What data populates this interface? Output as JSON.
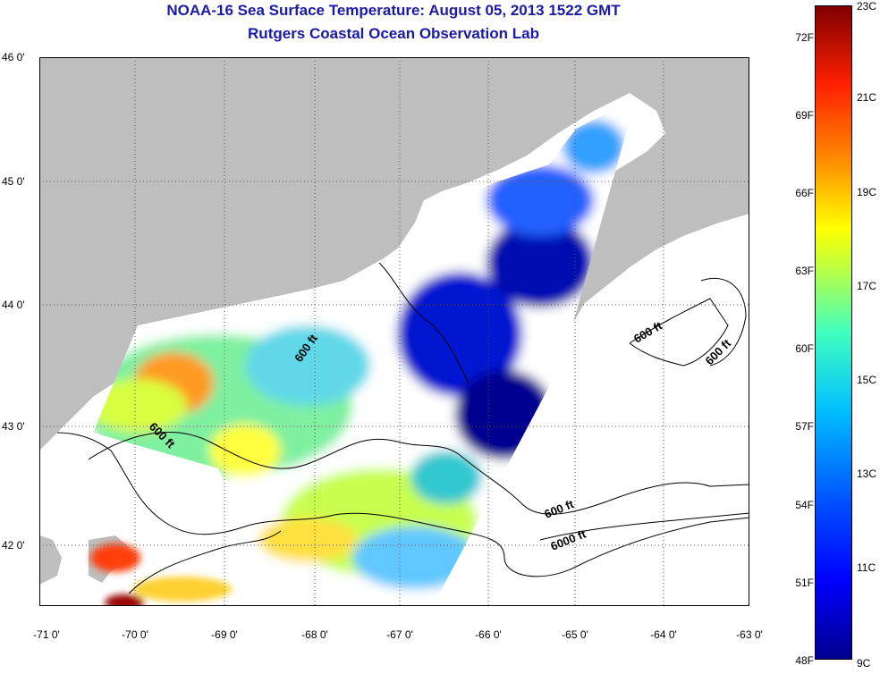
{
  "title_line1": "NOAA-16 Sea Surface Temperature:  August 05, 2013 1522 GMT",
  "title_line2": "Rutgers Coastal Ocean Observation Lab",
  "lat_labels": [
    "46 0'",
    "45 0'",
    "44 0'",
    "43 0'",
    "42 0'"
  ],
  "lon_labels": [
    "-71 0'",
    "-70 0'",
    "-69 0'",
    "-68 0'",
    "-67 0'",
    "-66 0'",
    "-65 0'",
    "-64 0'",
    "-63 0'"
  ],
  "contour_labels": [
    "600 ft",
    "600 ft",
    "600 ft",
    "600 ft",
    "600 ft",
    "6000 ft"
  ],
  "colorbar_F": [
    "72F",
    "69F",
    "66F",
    "63F",
    "60F",
    "57F",
    "54F",
    "51F",
    "48F"
  ],
  "colorbar_C": [
    "23C",
    "21C",
    "19C",
    "17C",
    "15C",
    "13C",
    "11C",
    "9C"
  ],
  "colors": {
    "title": "#1a1aa8",
    "land": "#bebebe",
    "ocean_no_data": "#ffffff",
    "cold": "#00008f",
    "warm": "#800000"
  }
}
